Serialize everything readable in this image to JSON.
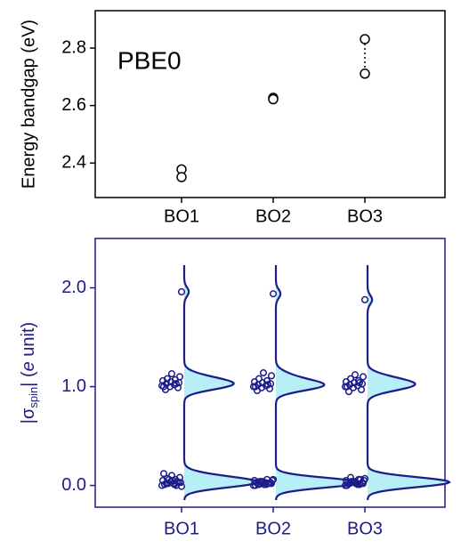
{
  "chart_data": [
    {
      "type": "scatter",
      "annotation": "PBE0",
      "y_label": "Energy bandgap (eV)",
      "categories": [
        "BO1",
        "BO2",
        "BO3"
      ],
      "series": [
        {
          "values": [
            2.378,
            2.627,
            2.831
          ]
        },
        {
          "values": [
            2.351,
            2.622,
            2.711
          ]
        }
      ],
      "color": "#000000",
      "connector": "dotted",
      "ylim": [
        2.28,
        2.93
      ],
      "yticks": [
        2.4,
        2.6,
        2.8
      ]
    },
    {
      "type": "strip",
      "y_label_parts": [
        "|σ",
        "spin",
        "| (",
        "e",
        " unit)"
      ],
      "categories": [
        "BO1",
        "BO2",
        "BO3"
      ],
      "groups": [
        [
          0.0,
          0.01,
          0.02,
          0.03,
          0.04,
          0.05,
          0.06,
          0.07,
          0.08,
          0.1,
          0.12,
          0.0,
          0.02,
          0.03,
          0.05,
          0.01,
          0.04,
          0.06,
          -0.01,
          0.02,
          0.97,
          0.99,
          1.0,
          1.01,
          1.02,
          1.03,
          1.04,
          1.05,
          1.06,
          1.07,
          1.08,
          1.1,
          1.13,
          1.0,
          1.03,
          1.96
        ],
        [
          0.0,
          0.01,
          0.02,
          0.03,
          0.04,
          0.05,
          0.06,
          0.01,
          0.02,
          0.03,
          0.0,
          0.02,
          0.04,
          0.05,
          0.01,
          0.03,
          0.02,
          0.04,
          0.06,
          0.03,
          0.96,
          0.98,
          0.99,
          1.0,
          1.01,
          1.02,
          1.03,
          1.04,
          1.05,
          1.06,
          1.08,
          1.11,
          1.14,
          1.0,
          1.02,
          1.94
        ],
        [
          0.0,
          0.01,
          0.02,
          0.03,
          0.04,
          0.05,
          0.06,
          0.08,
          0.02,
          0.03,
          0.0,
          0.01,
          0.04,
          0.05,
          0.02,
          0.03,
          0.06,
          0.04,
          0.07,
          0.02,
          0.95,
          0.97,
          0.99,
          1.0,
          1.01,
          1.02,
          1.03,
          1.04,
          1.05,
          1.06,
          1.08,
          1.1,
          1.12,
          1.0,
          1.04,
          1.88
        ]
      ],
      "color": "#1c1c8a",
      "fill": "#b8eef6",
      "ylim": [
        -0.22,
        2.5
      ],
      "yticks": [
        {
          "value": 0,
          "label": "0.0"
        },
        {
          "value": 1,
          "label": "1.0"
        },
        {
          "value": 2,
          "label": "2.0"
        }
      ]
    }
  ]
}
